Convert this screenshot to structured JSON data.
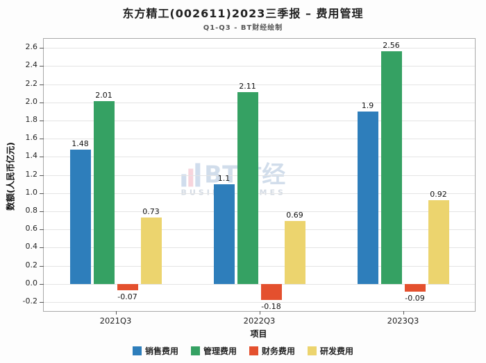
{
  "chart_data": {
    "type": "bar",
    "title": "东方精工(002611)2023三季报 – 费用管理",
    "subtitle": "Q1-Q3 - BT财经绘制",
    "categories": [
      "2021Q3",
      "2022Q3",
      "2023Q3"
    ],
    "series": [
      {
        "name": "销售费用",
        "color": "#2E7EBB",
        "values": [
          1.48,
          1.1,
          1.9
        ]
      },
      {
        "name": "管理费用",
        "color": "#35A163",
        "values": [
          2.01,
          2.11,
          2.56
        ]
      },
      {
        "name": "财务费用",
        "color": "#E4502E",
        "values": [
          -0.07,
          -0.18,
          -0.09
        ]
      },
      {
        "name": "研发费用",
        "color": "#ECD46E",
        "values": [
          0.73,
          0.69,
          0.92
        ]
      }
    ],
    "xlabel": "项目",
    "ylabel": "数额(人民币亿元)",
    "ylim": [
      -0.3,
      2.7
    ],
    "ytick_min": -0.2,
    "ytick_max": 2.6,
    "ytick_step": 0.2,
    "grid": true,
    "legend_position": "bottom"
  },
  "watermark": {
    "text": "BT财经",
    "subtext": "BUSINESSTIMES"
  }
}
